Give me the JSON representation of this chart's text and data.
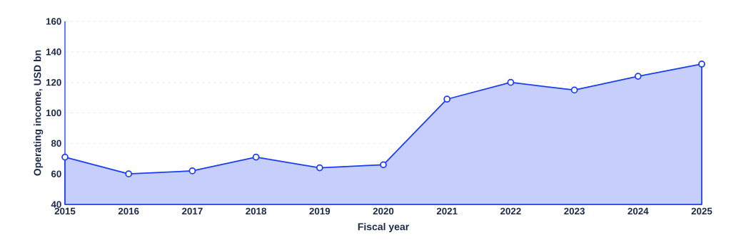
{
  "chart_data": {
    "type": "area",
    "xlabel": "Fiscal year",
    "ylabel": "Operating income, USD bn",
    "categories": [
      "2015",
      "2016",
      "2017",
      "2018",
      "2019",
      "2020",
      "2021",
      "2022",
      "2023",
      "2024",
      "2025"
    ],
    "series": [
      {
        "color": "#1a3cf5",
        "values": [
          71,
          60,
          62,
          71,
          64,
          66,
          109,
          120,
          115,
          124,
          132
        ]
      }
    ],
    "ylim": [
      40,
      160
    ],
    "yticks": [
      40,
      60,
      80,
      100,
      120,
      140,
      160
    ],
    "grid": "y",
    "marker": "circle"
  }
}
